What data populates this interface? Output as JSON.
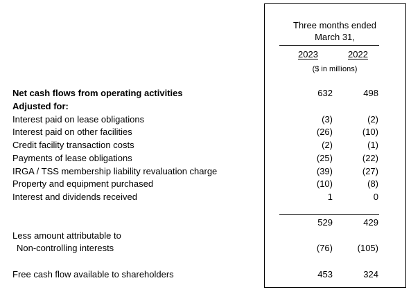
{
  "header": {
    "period_line1": "Three months ended",
    "period_line2": "March 31,",
    "year_a": "2023",
    "year_b": "2022",
    "unit": "($ in millions)"
  },
  "rows": [
    {
      "label": "Net cash flows from operating activities",
      "v2023": "632",
      "v2022": "498"
    },
    {
      "label": "Adjusted for:"
    },
    {
      "label": "Interest paid on lease obligations",
      "v2023": "(3)",
      "v2022": "(2)"
    },
    {
      "label": "Interest paid on other facilities",
      "v2023": "(26)",
      "v2022": "(10)"
    },
    {
      "label": "Credit facility transaction costs",
      "v2023": "(2)",
      "v2022": "(1)"
    },
    {
      "label": "Payments of lease obligations",
      "v2023": "(25)",
      "v2022": "(22)"
    },
    {
      "label": "IRGA / TSS membership liability revaluation charge",
      "v2023": "(39)",
      "v2022": "(27)"
    },
    {
      "label": "Property and equipment purchased",
      "v2023": "(10)",
      "v2022": "(8)"
    },
    {
      "label": "Interest and dividends received",
      "v2023": "1",
      "v2022": "0"
    }
  ],
  "subtotal": {
    "v2023": "529",
    "v2022": "429"
  },
  "nci": {
    "label_line1": "Less amount attributable to",
    "label_line2": "Non-controlling interests",
    "v2023": "(76)",
    "v2022": "(105)"
  },
  "fcf": {
    "label": "Free cash flow available to shareholders",
    "v2023": "453",
    "v2022": "324"
  }
}
